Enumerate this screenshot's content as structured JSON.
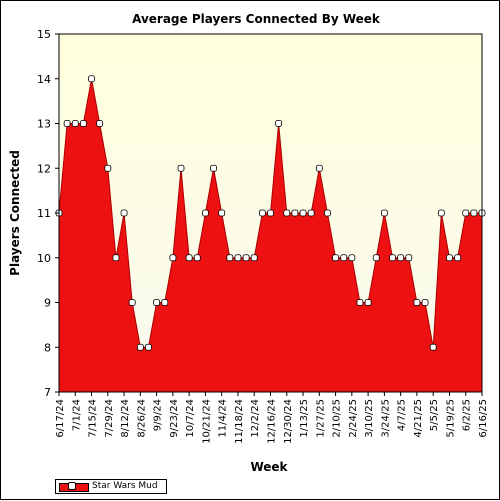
{
  "chart_data": {
    "type": "area",
    "title": "Average Players Connected By Week",
    "xlabel": "Week",
    "ylabel": "Players Connected",
    "ylim": [
      7,
      15
    ],
    "yticks": [
      7,
      8,
      9,
      10,
      11,
      12,
      13,
      14,
      15
    ],
    "xtick_labels": [
      "6/17/24",
      "7/1/24",
      "7/15/24",
      "7/29/24",
      "8/12/24",
      "8/26/24",
      "9/9/24",
      "9/23/24",
      "10/7/24",
      "10/21/24",
      "11/4/24",
      "11/18/24",
      "12/2/24",
      "12/16/24",
      "12/30/24",
      "1/13/25",
      "1/27/25",
      "2/10/25",
      "2/24/25",
      "3/10/25",
      "3/24/25",
      "4/7/25",
      "4/21/25",
      "5/5/25",
      "5/19/25",
      "6/2/25",
      "6/16/25"
    ],
    "legend_position": "bottom-left",
    "grid": false,
    "series": [
      {
        "name": "Star Wars Mud",
        "color": "#ee1111",
        "values": [
          11,
          13,
          13,
          13,
          14,
          13,
          12,
          10,
          11,
          9,
          8,
          8,
          9,
          9,
          10,
          12,
          10,
          10,
          11,
          12,
          11,
          10,
          10,
          10,
          10,
          11,
          11,
          13,
          11,
          11,
          11,
          11,
          12,
          11,
          10,
          10,
          10,
          9,
          9,
          10,
          11,
          10,
          10,
          10,
          9,
          9,
          8,
          11,
          10,
          10,
          11,
          11,
          11
        ]
      }
    ],
    "colors": {
      "plot_background_top": "#ffffdd",
      "plot_background_bottom": "#fafaf0",
      "area_fill": "#ee1111",
      "marker_fill": "#ffffff"
    }
  }
}
